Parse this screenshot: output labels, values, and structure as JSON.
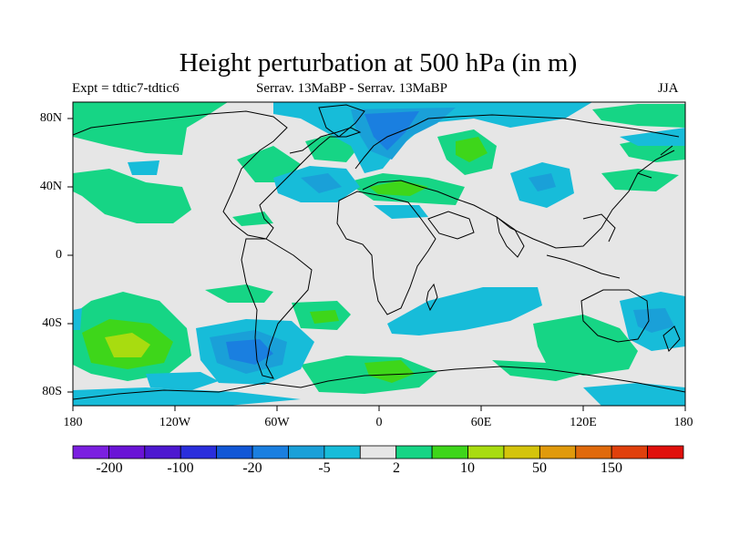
{
  "title": "Height perturbation at 500 hPa (in m)",
  "subtitle_left": "Expt = tdtic7-tdtic6",
  "subtitle_center": "Serrav.   13MaBP - Serrav.   13MaBP",
  "subtitle_right": "JJA",
  "lat_labels": [
    "80N",
    "40N",
    "0",
    "40S",
    "80S"
  ],
  "lon_labels": [
    "180",
    "120W",
    "60W",
    "0",
    "60E",
    "120E",
    "180"
  ],
  "colorbar": {
    "colors": [
      "#7b1fe0",
      "#6a14d6",
      "#4d18d0",
      "#2a2edc",
      "#1257d6",
      "#1a7fe0",
      "#1aa0d8",
      "#17bcd9",
      "#e6e6e6",
      "#16d585",
      "#3ed61a",
      "#a8dc10",
      "#d4c40c",
      "#e09a0c",
      "#e06a0c",
      "#e0400c",
      "#e0100c"
    ],
    "tick_labels": [
      "-200",
      "-100",
      "-20",
      "-5",
      "2",
      "10",
      "50",
      "150"
    ]
  },
  "legend_colors": {
    "neutral": "#e6e6e6",
    "pos_small": "#16d585",
    "pos_mid": "#3ed61a",
    "pos_high": "#a8dc10",
    "neg_small": "#17bcd9",
    "neg_mid": "#1aa0d8",
    "neg_high": "#1a7fe0",
    "neg_strong": "#1257d6"
  }
}
